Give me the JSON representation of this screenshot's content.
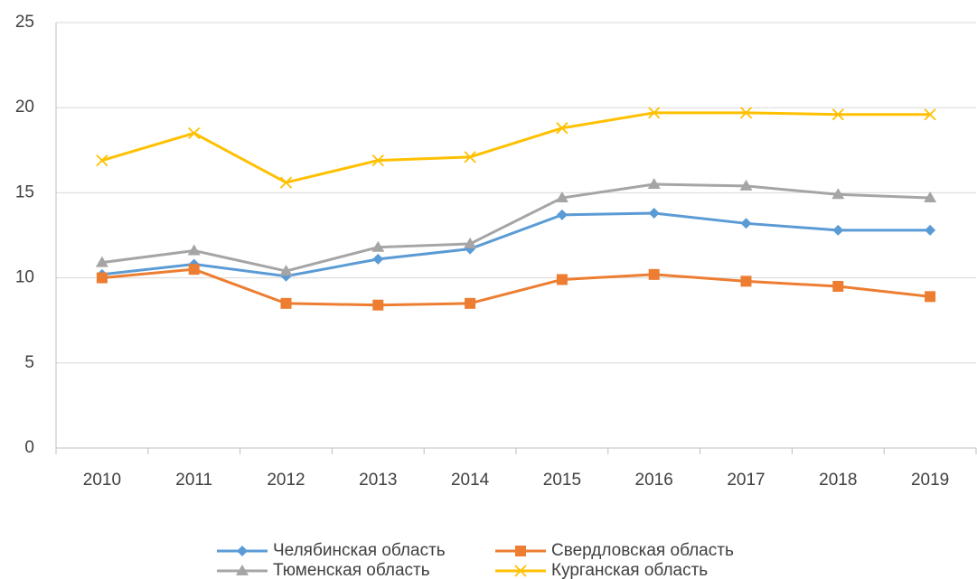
{
  "chart_data": {
    "type": "line",
    "categories": [
      "2010",
      "2011",
      "2012",
      "2013",
      "2014",
      "2015",
      "2016",
      "2017",
      "2018",
      "2019"
    ],
    "series": [
      {
        "name": "Челябинская область",
        "color": "#5b9bd5",
        "marker": "diamond",
        "values": [
          10.2,
          10.8,
          10.1,
          11.1,
          11.7,
          13.7,
          13.8,
          13.2,
          12.8,
          12.8
        ]
      },
      {
        "name": "Свердловская область",
        "color": "#ed7d31",
        "marker": "square",
        "values": [
          10.0,
          10.5,
          8.5,
          8.4,
          8.5,
          9.9,
          10.2,
          9.8,
          9.5,
          8.9
        ]
      },
      {
        "name": "Тюменская область",
        "color": "#a5a5a5",
        "marker": "triangle",
        "values": [
          10.9,
          11.6,
          10.4,
          11.8,
          12.0,
          14.7,
          15.5,
          15.4,
          14.9,
          14.7
        ]
      },
      {
        "name": "Курганская область",
        "color": "#ffc000",
        "marker": "x",
        "values": [
          16.9,
          18.5,
          15.6,
          16.9,
          17.1,
          18.8,
          19.7,
          19.7,
          19.6,
          19.6
        ]
      }
    ],
    "ylim": [
      0,
      25
    ],
    "yticks": [
      0,
      5,
      10,
      15,
      20,
      25
    ],
    "grid": true
  }
}
